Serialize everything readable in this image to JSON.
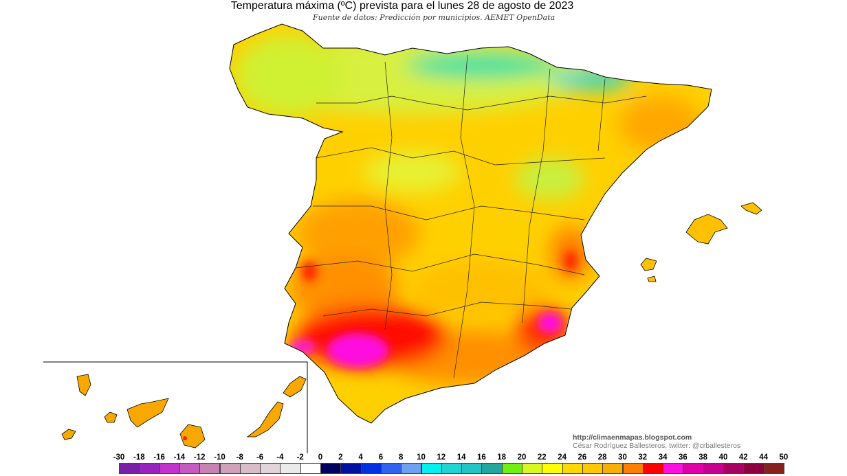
{
  "header": {
    "title": "Temperatura máxima (ºC) prevista para el lunes 28 de agosto de 2023",
    "subtitle": "Fuente de datos: Predicción por municipios. AEMET OpenData"
  },
  "credits": {
    "url": "http://climaenmapas.blogspot.com",
    "author": "César Rodríguez Ballesteros, twitter: @crballesteros"
  },
  "legend": {
    "labels": [
      "-30",
      "-18",
      "-16",
      "-14",
      "-12",
      "-10",
      "-8",
      "-6",
      "-4",
      "-2",
      "0",
      "2",
      "4",
      "6",
      "8",
      "10",
      "12",
      "14",
      "16",
      "18",
      "20",
      "22",
      "24",
      "26",
      "28",
      "30",
      "32",
      "34",
      "36",
      "38",
      "40",
      "42",
      "44",
      "50"
    ],
    "colors": [
      "#7a1fa8",
      "#9a22bc",
      "#c232cc",
      "#c65ac0",
      "#c883b4",
      "#d0a0bc",
      "#d8bcc8",
      "#e2d4da",
      "#eaeaea",
      "#ffffff",
      "#000060",
      "#0010a0",
      "#0030e0",
      "#3064f0",
      "#70a0f0",
      "#00f0f0",
      "#20d4d4",
      "#22c4c4",
      "#20a8a0",
      "#70f010",
      "#d8f820",
      "#ffff00",
      "#ffd800",
      "#ffc800",
      "#f8b000",
      "#ff8000",
      "#ff0000",
      "#ff10e0",
      "#e000a8",
      "#c80090",
      "#a80060",
      "#8c0040",
      "#882020"
    ]
  },
  "map": {
    "region": "España",
    "base_color": "#ffd400",
    "hot_color": "#ff0000",
    "hottest_color": "#ff10e0",
    "cool_color": "#20d4d4"
  }
}
